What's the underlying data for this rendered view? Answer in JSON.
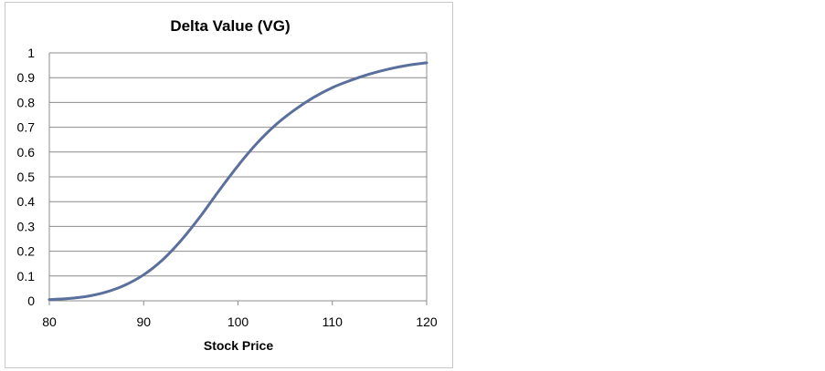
{
  "chart_data": {
    "type": "line",
    "title": "Delta Value (VG)",
    "xlabel": "Stock Price",
    "ylabel": "",
    "xlim": [
      80,
      120
    ],
    "ylim": [
      0,
      1
    ],
    "x_ticks": [
      "80",
      "90",
      "100",
      "110",
      "120"
    ],
    "y_ticks": [
      "0",
      "0.1",
      "0.2",
      "0.3",
      "0.4",
      "0.5",
      "0.6",
      "0.7",
      "0.8",
      "0.9",
      "1"
    ],
    "grid": "horizontal",
    "legend": "none",
    "line_color": "#5a6f9c",
    "grid_color": "#8c8c8c",
    "series": [
      {
        "x": [
          80,
          82,
          84,
          86,
          88,
          90,
          92,
          94,
          96,
          98,
          100,
          102,
          104,
          106,
          108,
          110,
          112,
          114,
          116,
          118,
          120
        ],
        "values": [
          0.005,
          0.009,
          0.018,
          0.035,
          0.063,
          0.105,
          0.165,
          0.245,
          0.34,
          0.445,
          0.545,
          0.635,
          0.71,
          0.77,
          0.82,
          0.86,
          0.89,
          0.915,
          0.935,
          0.95,
          0.96
        ]
      }
    ]
  }
}
